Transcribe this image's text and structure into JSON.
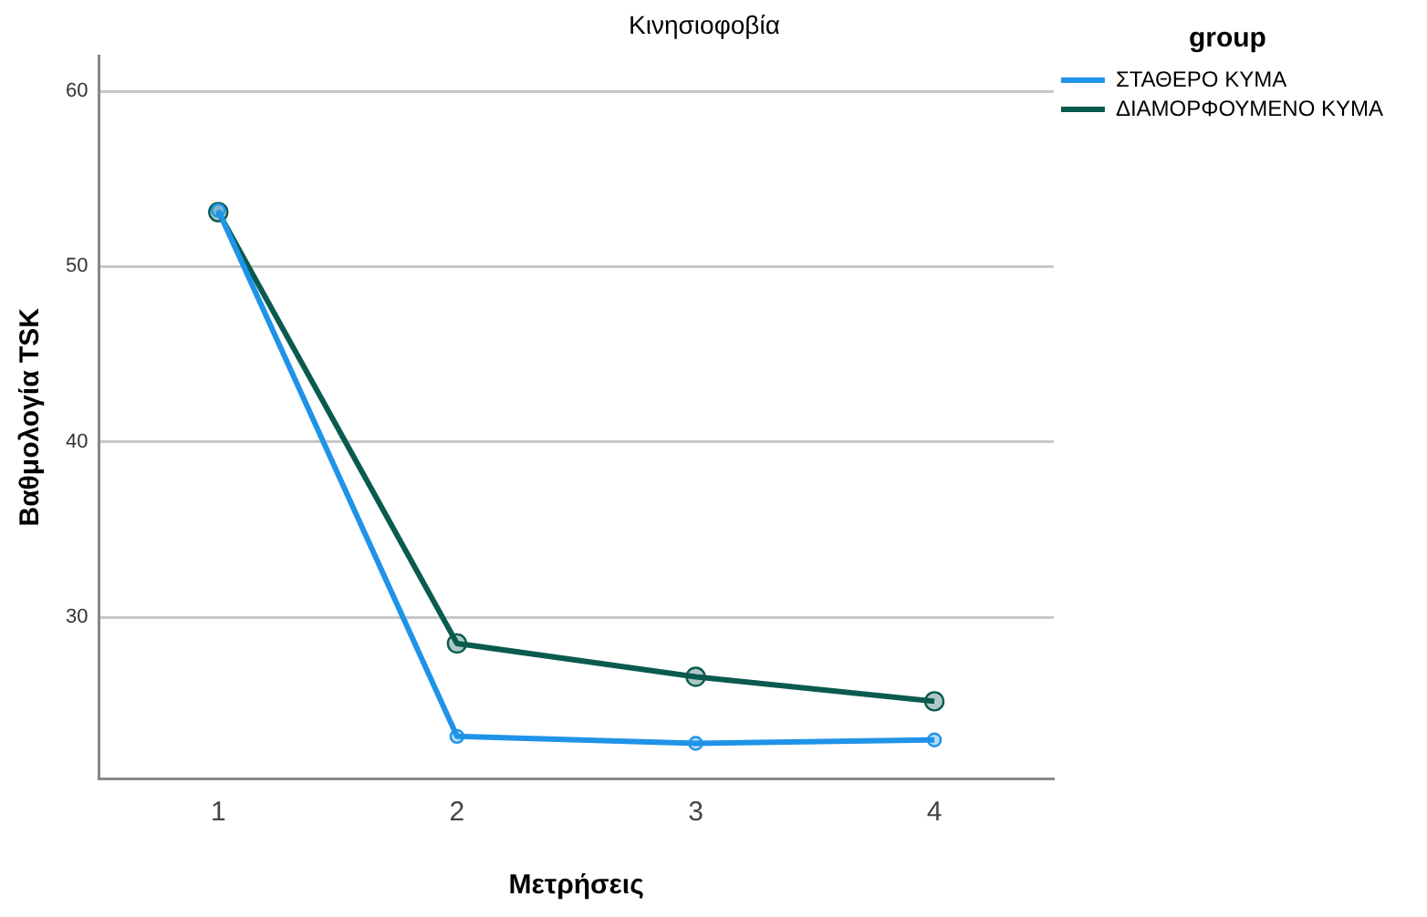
{
  "chart_data": {
    "type": "line",
    "title": "Κινησιοφοβία",
    "xlabel": "Μετρήσεις",
    "ylabel": "Βαθμολογία TSK",
    "legend_title": "group",
    "categories": [
      "1",
      "2",
      "3",
      "4"
    ],
    "series": [
      {
        "name": "ΣΤΑΘΕΡΟ ΚΥΜΑ",
        "color": "#1f93e8",
        "values": [
          53.2,
          23.2,
          22.8,
          23.0
        ]
      },
      {
        "name": "ΔΙΑΜΟΡΦΟΥΜΕΝΟ ΚΥΜΑ",
        "color": "#0a5a50",
        "values": [
          53.1,
          28.5,
          26.6,
          25.2
        ]
      }
    ],
    "ylim": [
      20.8,
      62
    ],
    "yticks": [
      30,
      40,
      50,
      60
    ],
    "grid": "y",
    "legend": "top right",
    "marker": "circle",
    "line_style": "solid"
  }
}
